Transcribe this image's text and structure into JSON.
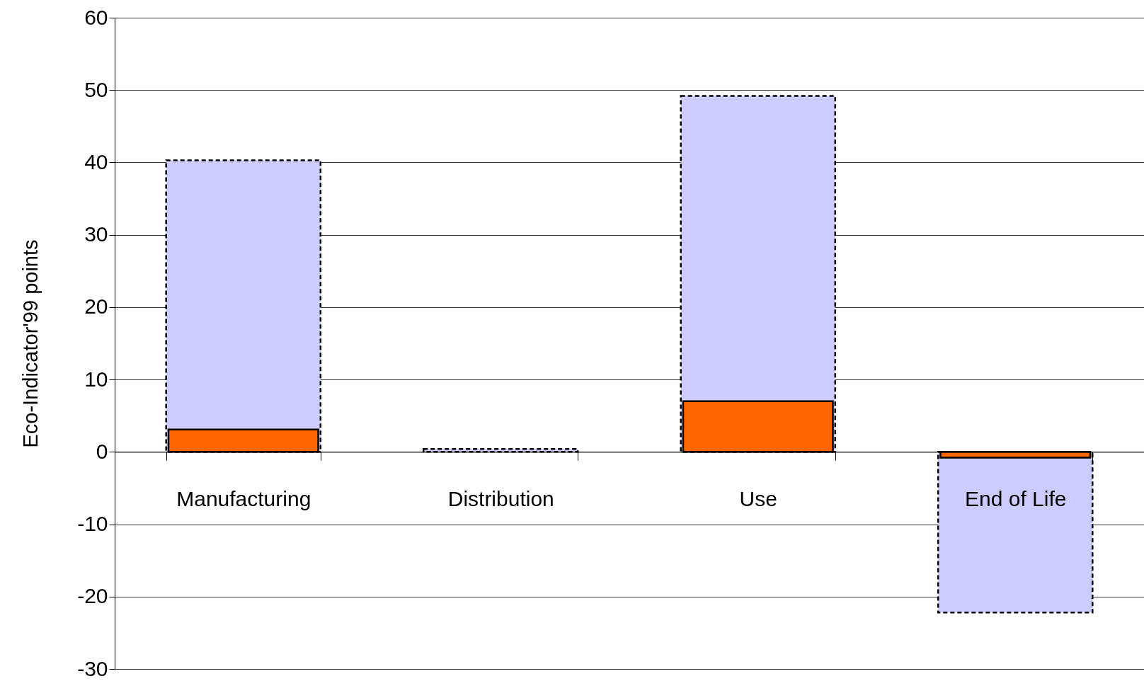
{
  "chart_data": {
    "type": "bar",
    "ylabel": "Eco-Indicator'99 points",
    "categories": [
      "Manufacturing",
      "Distribution",
      "Use",
      "End of Life"
    ],
    "series": [
      {
        "color": "#ccccff",
        "line_style": "dashed",
        "values": [
          40.3,
          0.4,
          49.2,
          -22.2
        ]
      },
      {
        "color": "#ff6600",
        "line_style": "solid",
        "values": [
          3.1,
          null,
          7.0,
          -0.8
        ]
      }
    ],
    "ylim": [
      -30,
      60
    ],
    "yticks": [
      -30,
      -20,
      -10,
      0,
      10,
      20,
      30,
      40,
      50,
      60
    ],
    "grid": "y"
  }
}
